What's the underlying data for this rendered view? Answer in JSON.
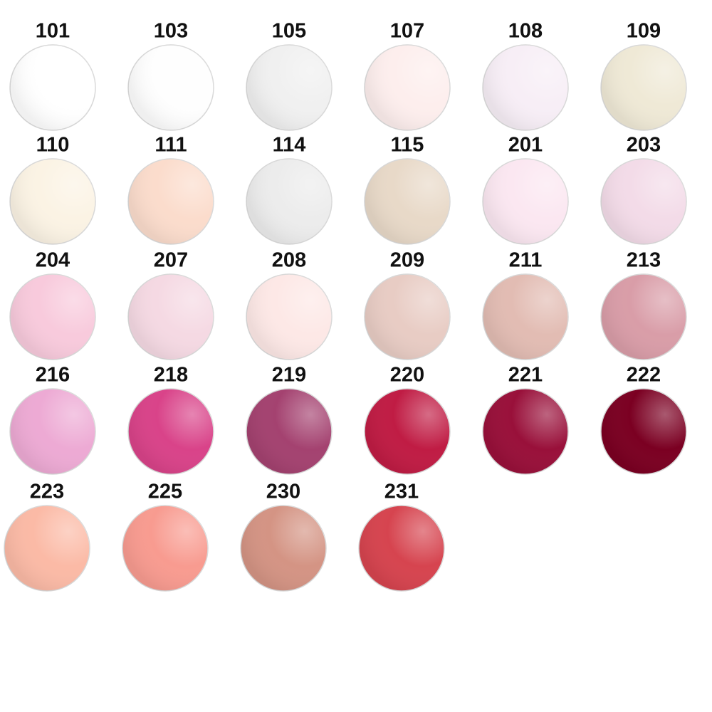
{
  "swatches": [
    {
      "label": "101",
      "color": "#ffffff"
    },
    {
      "label": "103",
      "color": "#fefefe"
    },
    {
      "label": "105",
      "color": "#f0f0f0"
    },
    {
      "label": "107",
      "color": "#fdeeed"
    },
    {
      "label": "108",
      "color": "#f7eef6"
    },
    {
      "label": "109",
      "color": "#efe9d6"
    },
    {
      "label": "110",
      "color": "#fbf3e4"
    },
    {
      "label": "111",
      "color": "#fbdccc"
    },
    {
      "label": "114",
      "color": "#ececec"
    },
    {
      "label": "115",
      "color": "#e8d9c8"
    },
    {
      "label": "201",
      "color": "#fbe7f1"
    },
    {
      "label": "203",
      "color": "#f3dbe8"
    },
    {
      "label": "204",
      "color": "#f8cadc"
    },
    {
      "label": "207",
      "color": "#f5d9e3"
    },
    {
      "label": "208",
      "color": "#fde8e6"
    },
    {
      "label": "209",
      "color": "#e8ccc4"
    },
    {
      "label": "211",
      "color": "#e2bcb3"
    },
    {
      "label": "213",
      "color": "#d99da8"
    },
    {
      "label": "216",
      "color": "#edaad4"
    },
    {
      "label": "218",
      "color": "#d94389"
    },
    {
      "label": "219",
      "color": "#a44270"
    },
    {
      "label": "220",
      "color": "#c01c44"
    },
    {
      "label": "221",
      "color": "#99103a"
    },
    {
      "label": "222",
      "color": "#7b0022"
    },
    {
      "label": "223",
      "color": "#fbbaa6"
    },
    {
      "label": "225",
      "color": "#f89b90"
    },
    {
      "label": "230",
      "color": "#d49484"
    },
    {
      "label": "231",
      "color": "#d6444f"
    }
  ]
}
